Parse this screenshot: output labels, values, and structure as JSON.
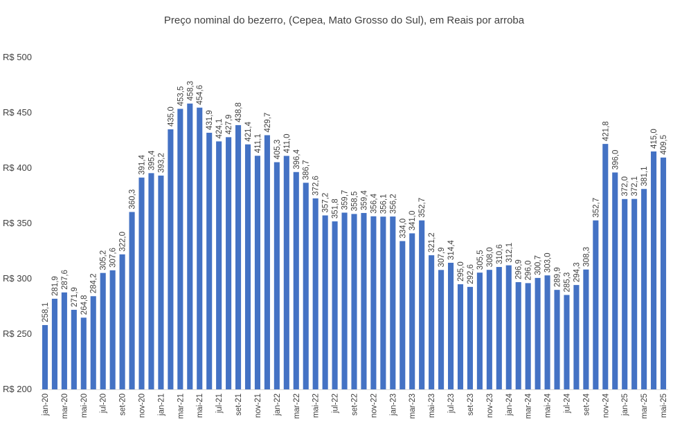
{
  "chart_data": {
    "type": "bar",
    "title": "Preço nominal do bezerro, (Cepea, Mato Grosso do Sul), em Reais por arroba",
    "xlabel": "",
    "ylabel": "",
    "ylim": [
      200,
      500
    ],
    "y_ticks": [
      200,
      250,
      300,
      350,
      400,
      450,
      500
    ],
    "y_tick_prefix": "R$ ",
    "grid": false,
    "legend": "none",
    "bar_color": "#4472C4",
    "categories": [
      "jan-20",
      "fev-20",
      "mar-20",
      "abr-20",
      "mai-20",
      "jun-20",
      "jul-20",
      "ago-20",
      "set-20",
      "out-20",
      "nov-20",
      "dez-20",
      "jan-21",
      "fev-21",
      "mar-21",
      "abr-21",
      "mai-21",
      "jun-21",
      "jul-21",
      "ago-21",
      "set-21",
      "out-21",
      "nov-21",
      "dez-21",
      "jan-22",
      "fev-22",
      "mar-22",
      "abr-22",
      "mai-22",
      "jun-22",
      "jul-22",
      "ago-22",
      "set-22",
      "out-22",
      "nov-22",
      "dez-22",
      "jan-23",
      "fev-23",
      "mar-23",
      "abr-23",
      "mai-23",
      "jun-23",
      "jul-23",
      "ago-23",
      "set-23",
      "out-23",
      "nov-23",
      "dez-23",
      "jan-24",
      "fev-24",
      "mar-24",
      "abr-24",
      "mai-24",
      "jun-24",
      "jul-24",
      "ago-24",
      "set-24",
      "out-24",
      "nov-24",
      "dez-24",
      "jan-25",
      "fev-25",
      "mar-25",
      "abr-25",
      "mai-25"
    ],
    "visible_x_labels": [
      "jan-20",
      "mar-20",
      "mai-20",
      "jul-20",
      "set-20",
      "nov-20",
      "jan-21",
      "mar-21",
      "mai-21",
      "jul-21",
      "set-21",
      "nov-21",
      "jan-22",
      "mar-22",
      "mai-22",
      "jul-22",
      "set-22",
      "nov-22",
      "jan-23",
      "mar-23",
      "mai-23",
      "jul-23",
      "set-23",
      "nov-23",
      "jan-24",
      "mar-24",
      "mai-24",
      "jul-24",
      "set-24",
      "nov-24",
      "jan-25",
      "mar-25",
      "mai-25"
    ],
    "values": [
      258.1,
      281.9,
      287.6,
      271.9,
      264.8,
      284.2,
      305.2,
      307.6,
      322.0,
      360.3,
      391.4,
      395.4,
      393.2,
      435.0,
      453.5,
      458.3,
      454.6,
      431.9,
      424.1,
      427.9,
      438.8,
      421.4,
      411.1,
      429.7,
      405.3,
      411.0,
      396.4,
      386.7,
      372.6,
      357.2,
      351.8,
      359.7,
      358.5,
      359.4,
      356.4,
      356.1,
      356.2,
      334.0,
      341.0,
      352.7,
      321.2,
      307.9,
      314.4,
      295.0,
      292.6,
      305.5,
      308.0,
      310.6,
      312.1,
      296.9,
      296.0,
      300.7,
      303.0,
      289.9,
      285.3,
      294.3,
      308.3,
      352.7,
      421.8,
      396.0,
      372.0,
      372.1,
      381.1,
      415.0,
      409.5
    ],
    "data_labels": [
      "258,1",
      "281,9",
      "287,6",
      "271,9",
      "264,8",
      "284,2",
      "305,2",
      "307,6",
      "322,0",
      "360,3",
      "391,4",
      "395,4",
      "393,2",
      "435,0",
      "453,5",
      "458,3",
      "454,6",
      "431,9",
      "424,1",
      "427,9",
      "438,8",
      "421,4",
      "411,1",
      "429,7",
      "405,3",
      "411,0",
      "396,4",
      "386,7",
      "372,6",
      "357,2",
      "351,8",
      "359,7",
      "358,5",
      "359,4",
      "356,4",
      "356,1",
      "356,2",
      "334,0",
      "341,0",
      "352,7",
      "321,2",
      "307,9",
      "314,4",
      "295,0",
      "292,6",
      "305,5",
      "308,0",
      "310,6",
      "312,1",
      "296,9",
      "296,0",
      "300,7",
      "303,0",
      "289,9",
      "285,3",
      "294,3",
      "308,3",
      "352,7",
      "421,8",
      "396,0",
      "372,0",
      "372,1",
      "381,1",
      "415,0",
      "409,5"
    ]
  }
}
